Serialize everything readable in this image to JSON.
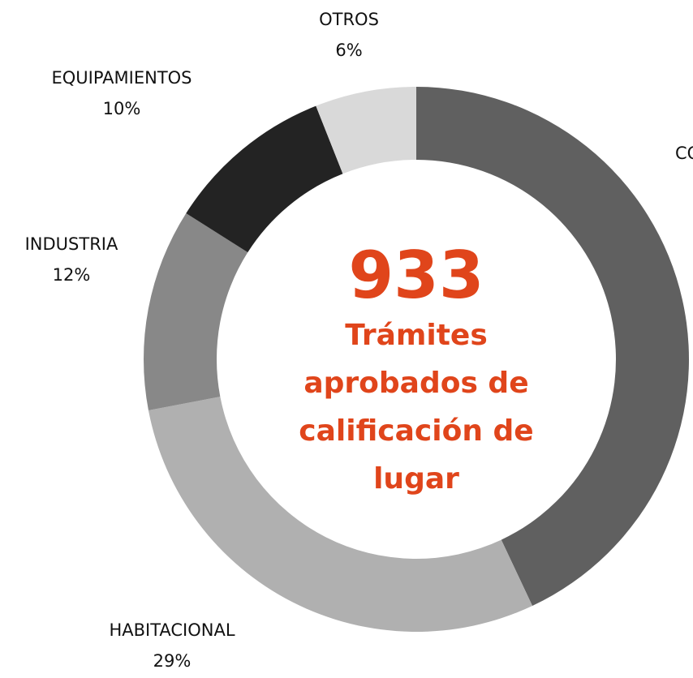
{
  "chart_data": {
    "type": "donut",
    "categories": [
      "CO",
      "HABITACIONAL",
      "INDUSTRIA",
      "EQUIPAMIENTOS",
      "OTROS"
    ],
    "values": [
      43,
      29,
      12,
      10,
      6
    ],
    "value_labels": [
      null,
      "29%",
      "12%",
      "10%",
      "6%"
    ],
    "colors": [
      "#606060",
      "#b0b0b0",
      "#888888",
      "#232323",
      "#d9d9d9"
    ],
    "center_value": 933,
    "center_text": [
      "Trámites",
      "aprobados de",
      "calificación de",
      "lugar"
    ],
    "center_color": "#e0451b"
  }
}
